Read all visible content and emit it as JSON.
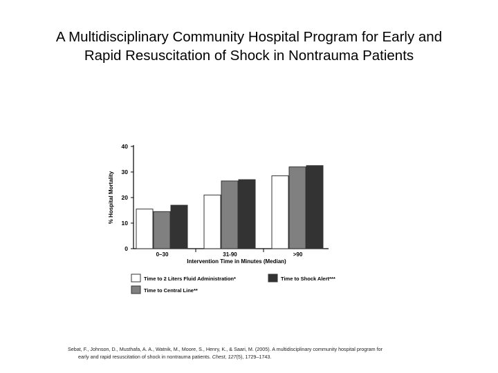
{
  "slide": {
    "title_line1": "A Multidisciplinary Community Hospital Program for Early and",
    "title_line2": "Rapid Resuscitation of Shock in Nontrauma Patients",
    "citation": {
      "line1": "Sebat, F., Johnson, D., Musthafa, A. A., Watnik, M., Moore, S., Henry, K., & Saari, M. (2005). A multidisciplinary community hospital program for",
      "line2_a": "early and rapid resuscitation of shock in nontrauma patients. ",
      "line2_journal": "Chest",
      "line2_b": ", ",
      "line2_volume": "127",
      "line2_c": "(5), 1729–1743."
    }
  },
  "chart_data": {
    "type": "bar",
    "categories": [
      "0–30",
      "31-90",
      ">90"
    ],
    "series": [
      {
        "name": "Time to 2 Liters Fluid Administration*",
        "values": [
          15.5,
          21,
          28.5
        ],
        "color": "#ffffff"
      },
      {
        "name": "Time to Central Line**",
        "values": [
          14.5,
          26.5,
          32
        ],
        "color": "#808080"
      },
      {
        "name": "Time to Shock Alert***",
        "values": [
          17,
          27,
          32.5
        ],
        "color": "#333333"
      }
    ],
    "xlabel": "Intervention Time in Minutes (Median)",
    "ylabel": "% Hospital Mortality",
    "ylim": [
      0,
      40
    ],
    "yticks": [
      0,
      10,
      20,
      30,
      40
    ],
    "grid": false,
    "legend_position": "bottom"
  }
}
